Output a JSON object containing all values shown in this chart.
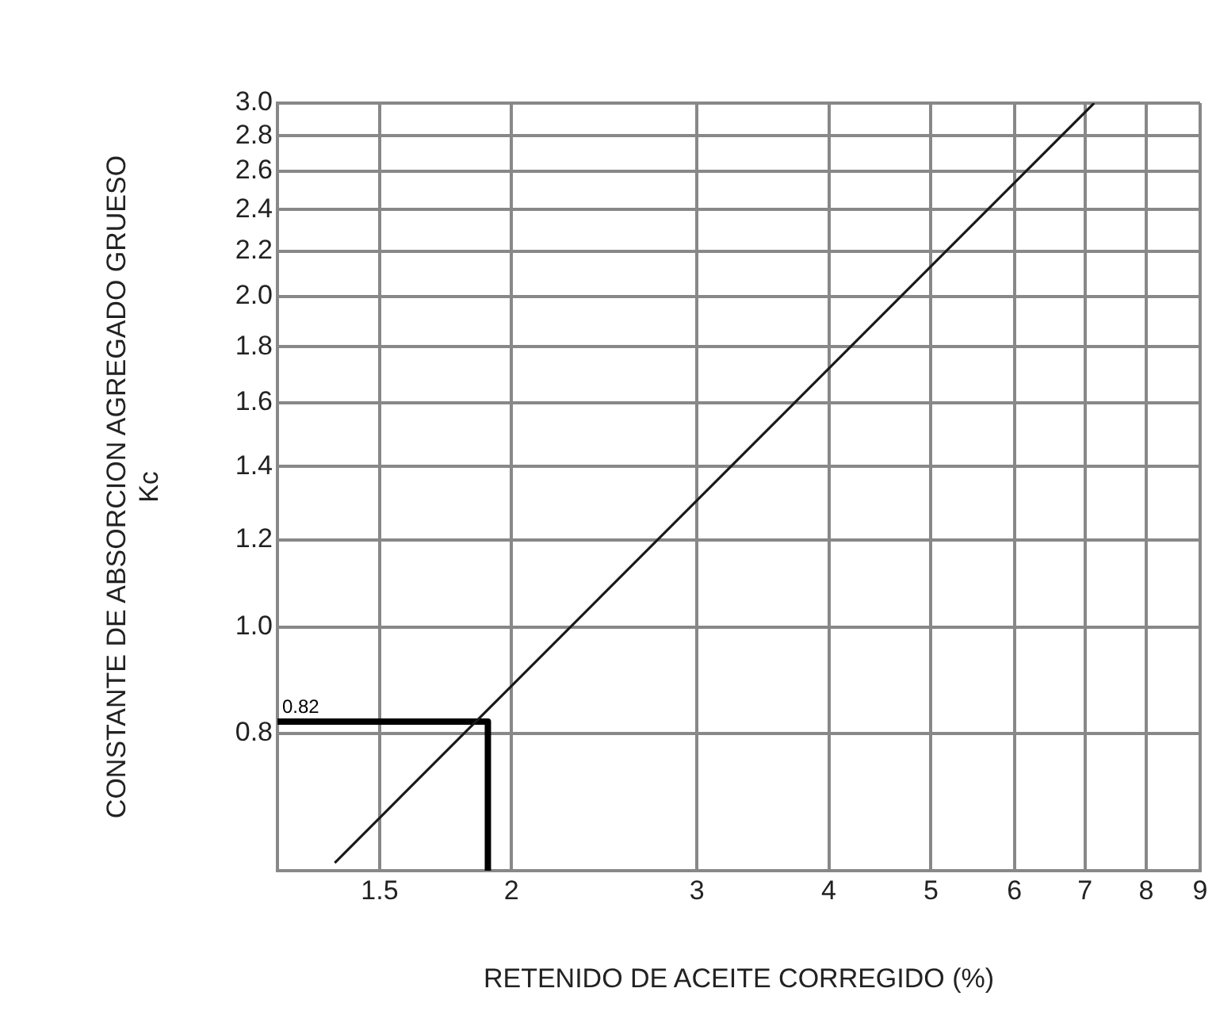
{
  "chart_data": {
    "type": "line",
    "xlabel": "RETENIDO DE ACEITE CORREGIDO (%)",
    "ylabel": "CONSTANTE DE ABSORCION AGREGADO GRUESO\nKc",
    "log": "xy",
    "grid": true,
    "legend": false,
    "marker": "none",
    "line_style": "solid",
    "xlim": [
      1.2,
      9
    ],
    "xticks": [
      {
        "value": 1.2,
        "label": null
      },
      1.5,
      2,
      3,
      4,
      5,
      6,
      7,
      8,
      9
    ],
    "ylim": [
      0.6,
      3.0
    ],
    "yticks": [
      {
        "value": 0.6,
        "label": null
      },
      {
        "value": 0.8,
        "label": "0.8"
      },
      {
        "value": 1.0,
        "label": "1.0"
      },
      {
        "value": 1.2,
        "label": "1.2"
      },
      {
        "value": 1.4,
        "label": "1.4"
      },
      {
        "value": 1.6,
        "label": "1.6"
      },
      {
        "value": 1.8,
        "label": "1.8"
      },
      {
        "value": 2.0,
        "label": "2.0"
      },
      {
        "value": 2.2,
        "label": "2.2"
      },
      {
        "value": 2.4,
        "label": "2.4"
      },
      {
        "value": 2.6,
        "label": "2.6"
      },
      {
        "value": 2.8,
        "label": "2.8"
      },
      {
        "value": 3.0,
        "label": "3.0"
      }
    ],
    "series": [
      {
        "color": "#1a1a1a",
        "x": [
          1.36,
          7.14
        ],
        "values": [
          0.61,
          3.0
        ]
      },
      {
        "color": "#000000",
        "x": [
          1.2,
          1.9,
          1.9
        ],
        "values": [
          0.82,
          0.82,
          0.6
        ]
      }
    ],
    "annotations": [
      {
        "text": "0.82",
        "x": 1.2,
        "y": 0.82
      }
    ]
  }
}
